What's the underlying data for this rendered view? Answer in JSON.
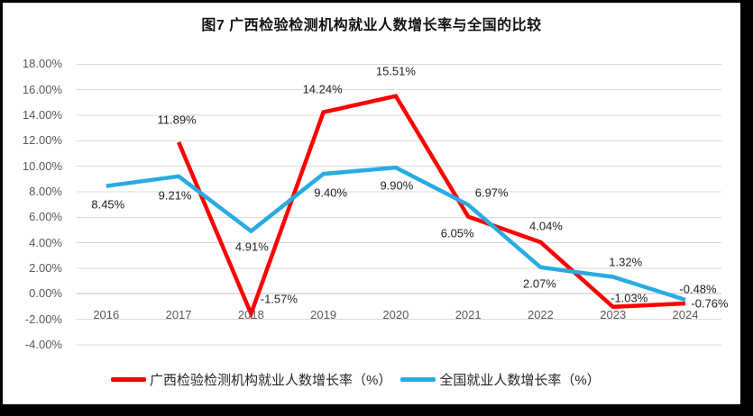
{
  "title": "图7 广西检验检测机构就业人数增长率与全国的比较",
  "chart_data": {
    "type": "line",
    "categories": [
      "2016",
      "2017",
      "2018",
      "2019",
      "2020",
      "2021",
      "2022",
      "2023",
      "2024"
    ],
    "series": [
      {
        "name": "广西检验检测机构就业人数增长率（%）",
        "color": "#FE0000",
        "values": [
          null,
          11.89,
          -1.57,
          14.24,
          15.51,
          6.05,
          4.04,
          -1.03,
          -0.76
        ],
        "point_labels": [
          "",
          "11.89%",
          "-1.57%",
          "14.24%",
          "15.51%",
          "6.05%",
          "4.04%",
          "-1.03%",
          "-0.76%"
        ]
      },
      {
        "name": "全国就业人数增长率（%）",
        "color": "#29ABE2",
        "values": [
          8.45,
          9.21,
          4.91,
          9.4,
          9.9,
          6.97,
          2.07,
          1.32,
          -0.48
        ],
        "point_labels": [
          "8.45%",
          "9.21%",
          "4.91%",
          "9.40%",
          "9.90%",
          "6.97%",
          "2.07%",
          "1.32%",
          "-0.48%"
        ]
      }
    ],
    "xlabel": "",
    "ylabel": "",
    "ylim": [
      -4,
      18
    ],
    "ytick_step": 2,
    "ytick_labels": [
      "18.00%",
      "16.00%",
      "14.00%",
      "12.00%",
      "10.00%",
      "8.00%",
      "6.00%",
      "4.00%",
      "2.00%",
      "0.00%",
      "-2.00%",
      "-4.00%"
    ],
    "grid": "horizontal",
    "legend_position": "bottom"
  },
  "colors": {
    "grid": "#D9D9D9",
    "zero_axis": "#BFBFBF",
    "axis_text": "#595959",
    "label_text": "#1F1F1F",
    "frame_border": "#000000",
    "background": "#FFFFFF"
  }
}
